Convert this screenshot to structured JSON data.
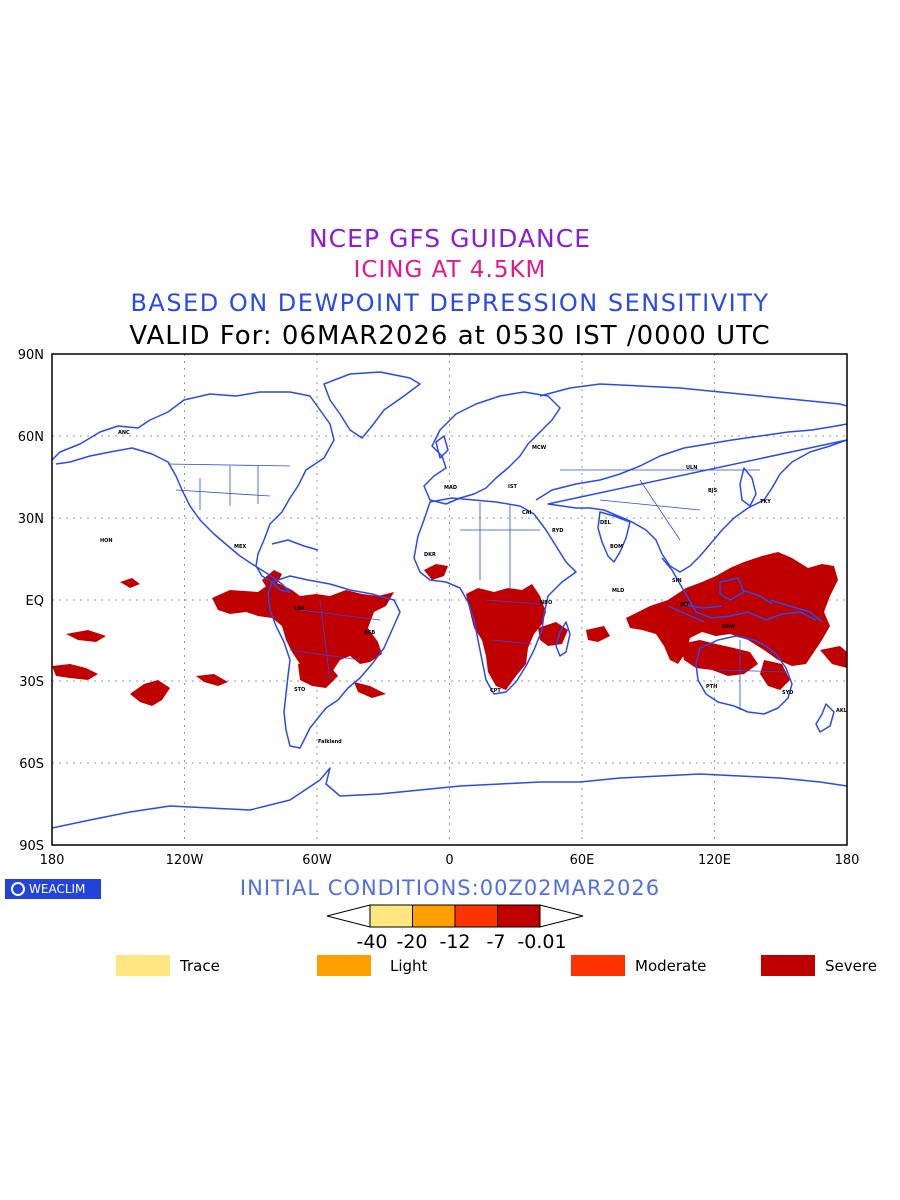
{
  "titles": {
    "line1": "NCEP GFS GUIDANCE",
    "line2": "ICING AT 4.5KM",
    "line3": "BASED ON DEWPOINT DEPRESSION SENSITIVITY",
    "line4": "VALID For: 06MAR2026 at 0530 IST /0000 UTC"
  },
  "map": {
    "lat_labels": [
      "90N",
      "60N",
      "30N",
      "EQ",
      "30S",
      "60S",
      "90S"
    ],
    "lon_labels": [
      "180",
      "120W",
      "60W",
      "0",
      "60E",
      "120E",
      "180"
    ],
    "coast_color": "#2b4be6",
    "icing_color": "#c00000",
    "grid": true
  },
  "init_conditions": "INITIAL CONDITIONS:00Z02MAR2026",
  "logo": {
    "text": "WEACLIM",
    "icon": "copyright-ring-icon"
  },
  "colorbar": {
    "ticks": [
      "-40",
      "-20",
      "-12",
      "-7",
      "-0.01"
    ],
    "colors": [
      "#ffe680",
      "#ffa000",
      "#ff3300",
      "#c00000"
    ]
  },
  "legend": [
    {
      "label": "Trace",
      "color": "#ffe680"
    },
    {
      "label": "Light",
      "color": "#ffa000"
    },
    {
      "label": "Moderate",
      "color": "#ff3300"
    },
    {
      "label": "Severe",
      "color": "#c00000"
    }
  ],
  "stations": [
    "ANC",
    "HON",
    "MEX",
    "LIM",
    "BSB",
    "STO",
    "Falkland",
    "DKR",
    "MAD",
    "CAI",
    "MCW",
    "ULN",
    "DEL",
    "BOM",
    "MLD",
    "SIN",
    "JKT",
    "DRW",
    "SYD",
    "PTH",
    "AKL",
    "TKY",
    "BJS",
    "CPT",
    "NBO",
    "RYD",
    "IST"
  ]
}
